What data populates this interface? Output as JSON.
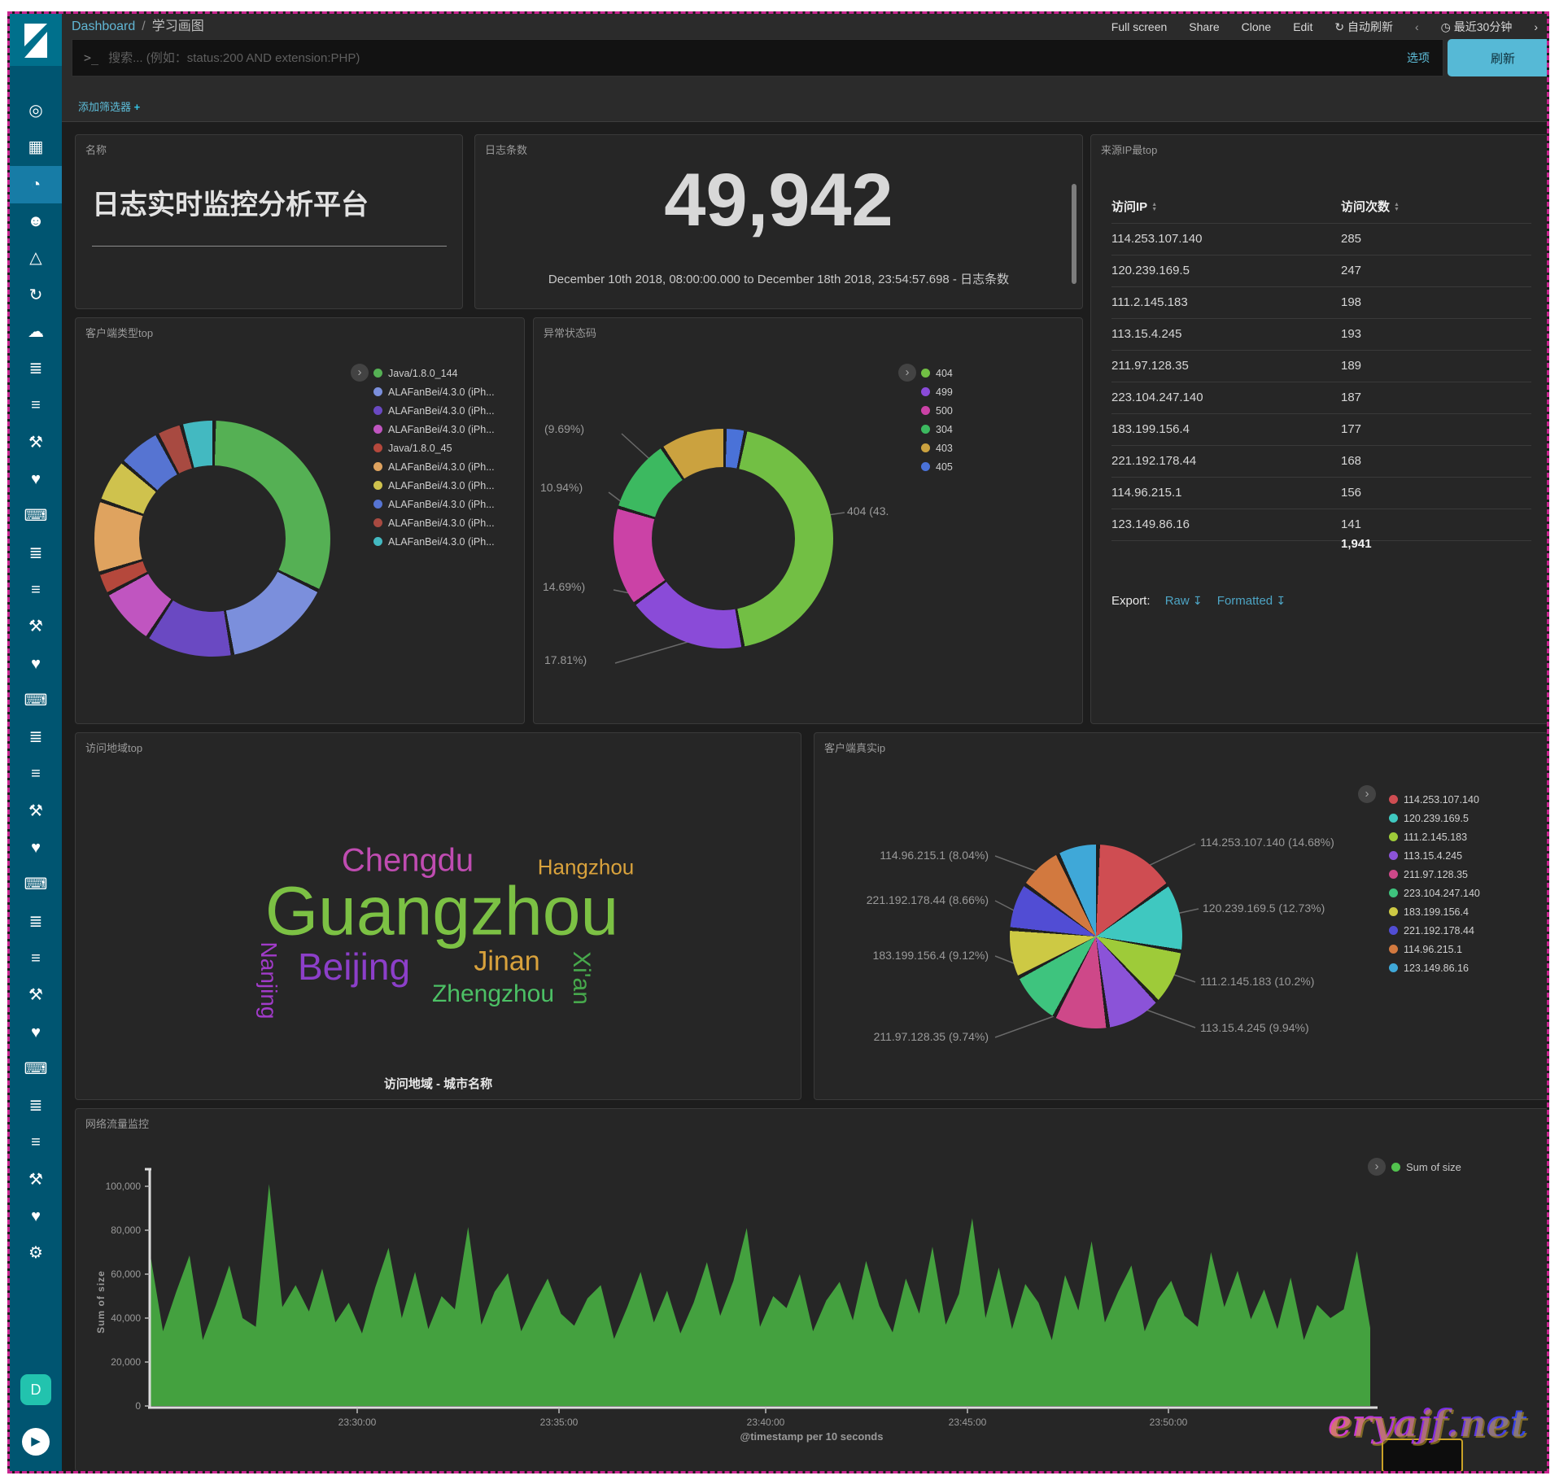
{
  "chrome": {
    "breadcrumb": {
      "root": "Dashboard",
      "sep": "/",
      "current": "学习画图"
    },
    "menu": [
      {
        "label": "Full screen",
        "name": "full-screen"
      },
      {
        "label": "Share",
        "name": "share"
      },
      {
        "label": "Clone",
        "name": "clone"
      },
      {
        "label": "Edit",
        "name": "edit"
      }
    ],
    "auto_refresh": "自动刷新",
    "time_range": "最近30分钟",
    "search_placeholder": "搜索... (例如：status:200 AND extension:PHP)",
    "options_label": "选项",
    "refresh_label": "刷新",
    "add_filter": "添加筛选器",
    "add_filter_plus": "+",
    "sidebar": {
      "icons": [
        "compass",
        "bar-chart",
        "gauge",
        "bear",
        "easel",
        "sync",
        "cloud-server",
        "scroll",
        "lines",
        "wrench",
        "heartbeat",
        "console",
        "scroll",
        "lines",
        "wrench",
        "heartbeat",
        "console",
        "scroll",
        "lines",
        "wrench",
        "heartbeat",
        "console",
        "scroll",
        "lines",
        "wrench",
        "heartbeat",
        "console",
        "scroll",
        "lines",
        "wrench",
        "heartbeat",
        "gear"
      ],
      "selected_index": 2,
      "badge": "D"
    }
  },
  "panels": {
    "name": {
      "title": "名称",
      "value": "日志实时监控分析平台"
    },
    "count": {
      "title": "日志条数",
      "value": "49,942",
      "subtitle": "December 10th 2018, 08:00:00.000 to December 18th 2018, 23:54:57.698 - 日志条数"
    },
    "top_ip": {
      "title": "来源IP最top",
      "columns": [
        "访问IP",
        "访问次数"
      ],
      "rows": [
        [
          "114.253.107.140",
          "285"
        ],
        [
          "120.239.169.5",
          "247"
        ],
        [
          "111.2.145.183",
          "198"
        ],
        [
          "113.15.4.245",
          "193"
        ],
        [
          "211.97.128.35",
          "189"
        ],
        [
          "223.104.247.140",
          "187"
        ],
        [
          "183.199.156.4",
          "177"
        ],
        [
          "221.192.178.44",
          "168"
        ],
        [
          "114.96.215.1",
          "156"
        ],
        [
          "123.149.86.16",
          "141"
        ]
      ],
      "total": "1,941",
      "export_label": "Export:",
      "export_links": [
        "Raw",
        "Formatted"
      ]
    },
    "client_type": {
      "title": "客户端类型top"
    },
    "status_code": {
      "title": "异常状态码"
    },
    "region": {
      "title": "访问地域top",
      "caption": "访问地域 - 城市名称"
    },
    "real_ip": {
      "title": "客户端真实ip"
    },
    "traffic": {
      "title": "网络流量监控"
    }
  },
  "chart_data": [
    {
      "id": "client_type",
      "type": "donut",
      "title": "客户端类型top",
      "legend_position": "right",
      "slices": [
        {
          "label": "Java/1.8.0_144",
          "value": 32,
          "color": "#55b054"
        },
        {
          "label": "ALAFanBei/4.3.0 (iPh...",
          "value": 15,
          "color": "#7b8fdc"
        },
        {
          "label": "ALAFanBei/4.3.0 (iPh...",
          "value": 12,
          "color": "#6a49c2"
        },
        {
          "label": "ALAFanBei/4.3.0 (iPh...",
          "value": 8,
          "color": "#c055c0"
        },
        {
          "label": "Java/1.8.0_45",
          "value": 3,
          "color": "#b5483c"
        },
        {
          "label": "ALAFanBei/4.3.0 (iPh...",
          "value": 10,
          "color": "#dfa35f"
        },
        {
          "label": "ALAFanBei/4.3.0 (iPh...",
          "value": 6,
          "color": "#cfc24d"
        },
        {
          "label": "ALAFanBei/4.3.0 (iPh...",
          "value": 6,
          "color": "#5674d2"
        },
        {
          "label": "ALAFanBei/4.3.0 (iPh...",
          "value": 3.5,
          "color": "#a84a41"
        },
        {
          "label": "ALAFanBei/4.3.0 (iPh...",
          "value": 4.5,
          "color": "#43b9c1"
        }
      ]
    },
    {
      "id": "status_code",
      "type": "donut",
      "title": "异常状态码",
      "legend_position": "right",
      "legend_order": [
        "404",
        "499",
        "500",
        "304",
        "403",
        "405"
      ],
      "slices": [
        {
          "label": "405",
          "value": 3.0,
          "color": "#4a72d8"
        },
        {
          "label": "404",
          "value": 43.87,
          "color": "#72bf44"
        },
        {
          "label": "499",
          "value": 17.81,
          "color": "#8a4bd8"
        },
        {
          "label": "500",
          "value": 14.69,
          "color": "#cb42a6"
        },
        {
          "label": "304",
          "value": 10.94,
          "color": "#3cb960"
        },
        {
          "label": "403",
          "value": 9.69,
          "color": "#cba23f"
        }
      ],
      "callouts": [
        "(9.69%)",
        "10.94%)",
        "14.69%)",
        "17.81%)",
        "404 (43."
      ]
    },
    {
      "id": "real_ip",
      "type": "pie",
      "title": "客户端真实ip",
      "legend_position": "right",
      "slices": [
        {
          "label": "114.253.107.140",
          "value": 285,
          "percent": "14.68%",
          "color": "#cf4d52"
        },
        {
          "label": "120.239.169.5",
          "value": 247,
          "percent": "12.73%",
          "color": "#3fc8c0"
        },
        {
          "label": "111.2.145.183",
          "value": 198,
          "percent": "10.2%",
          "color": "#9ecb39"
        },
        {
          "label": "113.15.4.245",
          "value": 193,
          "percent": "9.94%",
          "color": "#8b53d8"
        },
        {
          "label": "211.97.128.35",
          "value": 189,
          "percent": "9.74%",
          "color": "#ce4889"
        },
        {
          "label": "223.104.247.140",
          "value": 187,
          "percent": "9.63%",
          "color": "#3ec47e"
        },
        {
          "label": "183.199.156.4",
          "value": 177,
          "percent": "9.12%",
          "color": "#cdc944"
        },
        {
          "label": "221.192.178.44",
          "value": 168,
          "percent": "8.66%",
          "color": "#514dd4"
        },
        {
          "label": "114.96.215.1",
          "value": 156,
          "percent": "8.04%",
          "color": "#d2793f"
        },
        {
          "label": "123.149.86.16",
          "value": 141,
          "percent": "7.26%",
          "color": "#3fa8d8"
        }
      ],
      "callouts": [
        "114.253.107.140 (14.68%)",
        "120.239.169.5 (12.73%)",
        "111.2.145.183 (10.2%)",
        "113.15.4.245 (9.94%)",
        "211.97.128.35 (9.74%)",
        "183.199.156.4 (9.12%)",
        "221.192.178.44 (8.66%)",
        "114.96.215.1 (8.04%)"
      ]
    },
    {
      "id": "region_cloud",
      "type": "wordcloud",
      "title": "访问地域top",
      "words": [
        {
          "text": "Guangzhou",
          "color": "#7cc144",
          "size": 84
        },
        {
          "text": "Chengdu",
          "color": "#bf4cb1",
          "size": 40
        },
        {
          "text": "Beijing",
          "color": "#8c3fc9",
          "size": 46
        },
        {
          "text": "Hangzhou",
          "color": "#d9a23c",
          "size": 26
        },
        {
          "text": "Jinan",
          "color": "#d9a23c",
          "size": 34
        },
        {
          "text": "Zhengzhou",
          "color": "#4cc065",
          "size": 30
        },
        {
          "text": "Nanjing",
          "color": "#a13bc9",
          "size": 28,
          "rotate": 90
        },
        {
          "text": "Xi'an",
          "color": "#47a84c",
          "size": 30,
          "rotate": 90
        }
      ]
    },
    {
      "id": "traffic",
      "type": "area",
      "title": "网络流量监控",
      "legend": "Sum of size",
      "series_color": "#44a13f",
      "legend_dot_color": "#52c24e",
      "ylabel": "Sum of size",
      "xlabel": "@timestamp per 10 seconds",
      "ylim": [
        0,
        105000
      ],
      "grid": false,
      "y_ticks": [
        "0",
        "20,000",
        "40,000",
        "60,000",
        "80,000",
        "100,000"
      ],
      "x_ticks": [
        "23:30:00",
        "23:35:00",
        "23:40:00",
        "23:45:00",
        "23:50:00"
      ],
      "values": [
        70500,
        34000,
        52000,
        68500,
        30000,
        46000,
        64000,
        40000,
        36000,
        101000,
        45000,
        55000,
        43000,
        62500,
        38000,
        47000,
        33000,
        54000,
        72000,
        40000,
        61000,
        35000,
        50000,
        44000,
        81500,
        37000,
        52000,
        60500,
        34000,
        46500,
        58000,
        42000,
        36500,
        49000,
        55000,
        30500,
        45000,
        61000,
        38000,
        52500,
        33000,
        47000,
        65500,
        41000,
        57000,
        81000,
        36000,
        50000,
        44500,
        60000,
        34000,
        48000,
        56500,
        39000,
        66000,
        45500,
        33500,
        58000,
        42000,
        72500,
        37000,
        51000,
        85500,
        40000,
        63000,
        35000,
        55500,
        47000,
        30000,
        59500,
        43500,
        75000,
        38000,
        52000,
        64000,
        34000,
        48500,
        57000,
        41000,
        36000,
        70000,
        45000,
        61500,
        39500,
        53000,
        35000,
        58500,
        30000,
        46000,
        40000,
        44000,
        70500,
        35500
      ]
    }
  ],
  "watermark": "eryajf.net"
}
